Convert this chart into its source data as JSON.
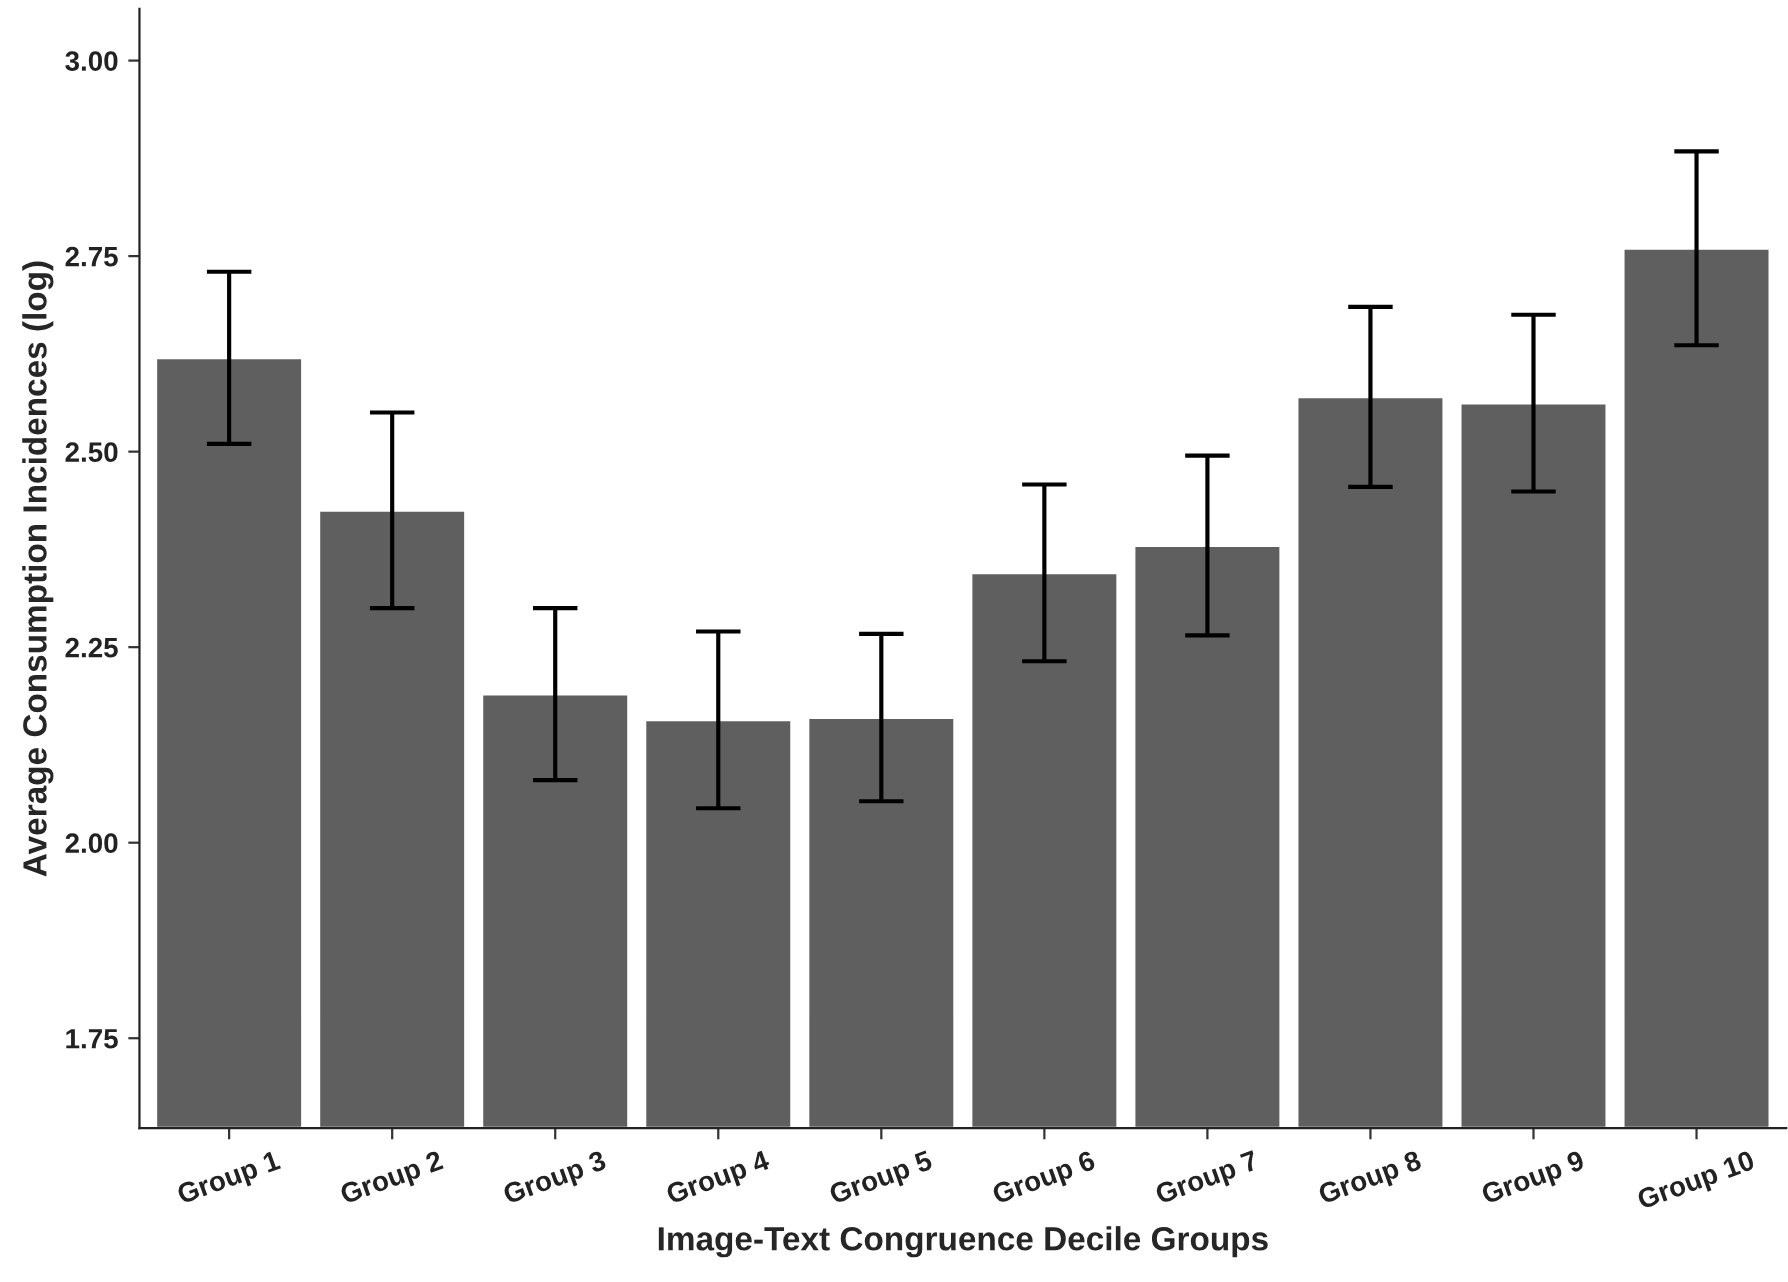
{
  "chart_data": {
    "type": "bar",
    "xlabel": "Image-Text Congruence Decile Groups",
    "ylabel": "Average Consumption Incidences (log)",
    "categories": [
      "Group 1",
      "Group 2",
      "Group 3",
      "Group 4",
      "Group 5",
      "Group 6",
      "Group 7",
      "Group 8",
      "Group 9",
      "Group 10"
    ],
    "values": [
      2.62,
      2.425,
      2.19,
      2.157,
      2.16,
      2.345,
      2.38,
      2.57,
      2.562,
      2.76
    ],
    "errors": [
      0.11,
      0.125,
      0.11,
      0.113,
      0.107,
      0.113,
      0.115,
      0.115,
      0.113,
      0.124
    ],
    "color": "#5f5f5f",
    "ylim": [
      1.635,
      3.066
    ],
    "yticks": [
      {
        "value": 1.75,
        "label": "1.75"
      },
      {
        "value": 2.0,
        "label": "2.00"
      },
      {
        "value": 2.25,
        "label": "2.25"
      },
      {
        "value": 2.5,
        "label": "2.50"
      },
      {
        "value": 2.75,
        "label": "2.75"
      },
      {
        "value": 3.0,
        "label": "3.00"
      }
    ],
    "grid": false
  }
}
